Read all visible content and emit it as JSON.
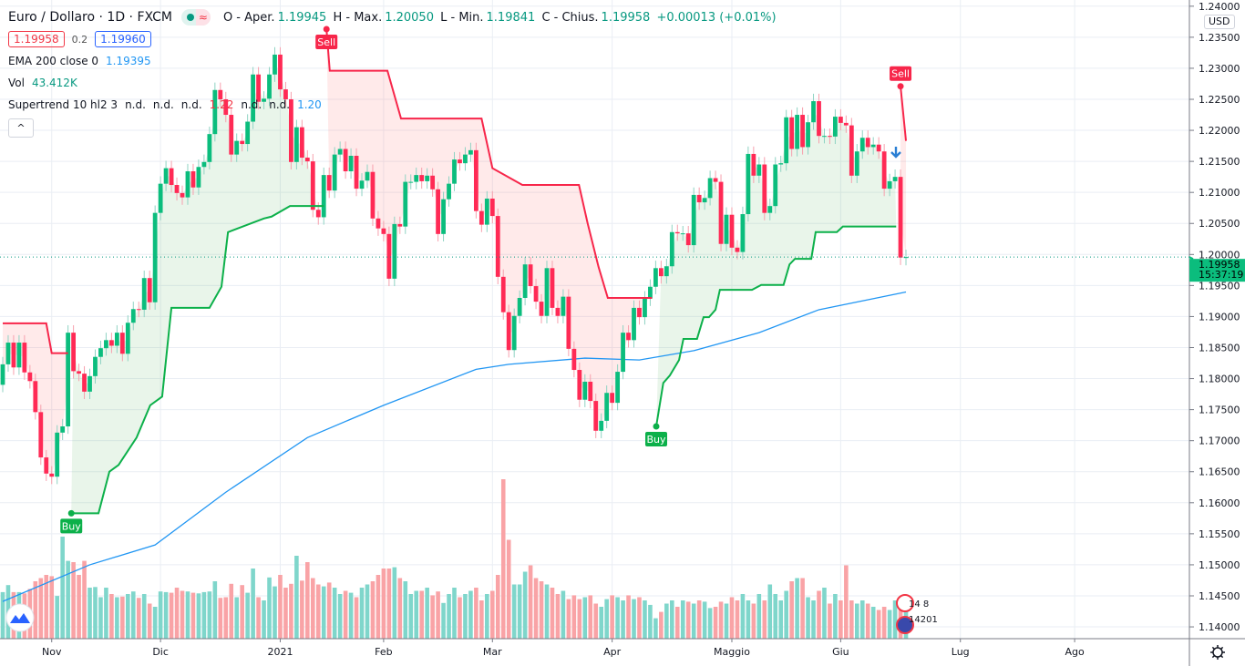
{
  "header": {
    "symbol": "Euro / Dollaro · 1D · FXCM",
    "open_label": "O - Aper.",
    "open": "1.19945",
    "high_label": "H - Max.",
    "high": "1.20050",
    "low_label": "L - Min.",
    "low": "1.19841",
    "close_label": "C - Chius.",
    "close": "1.19958",
    "change": "+0.00013 (+0.01%)",
    "market_status_icons": [
      "market-open-dot-icon",
      "approx-wave-icon"
    ]
  },
  "quote": {
    "bid": "1.19958",
    "spread": "0.2",
    "ask": "1.19960"
  },
  "indicators": {
    "ema": {
      "label": "EMA 200 close 0",
      "value": "1.19395"
    },
    "vol": {
      "label": "Vol",
      "value": "43.412K"
    },
    "supertrend": {
      "label": "Supertrend 10 hl2 3",
      "values": [
        "n.d.",
        "n.d.",
        "n.d.",
        "1.22",
        "n.d.",
        "n.d.",
        "1.20"
      ]
    },
    "collapse_label": "^"
  },
  "axis": {
    "currency": "USD",
    "last_price": "1.19958",
    "countdown": "15:37:19"
  },
  "events": {
    "flag1_text": "14 8",
    "flag2_text": "14201"
  },
  "colors": {
    "up": "#0bbd7d",
    "down": "#ff2a55",
    "ema": "#2196f3",
    "st_up": "#0cb04a",
    "st_down": "#f7264a",
    "vol_up": "#7fd6cb",
    "vol_down": "#f9a3a6"
  },
  "chart_data": {
    "type": "candlestick",
    "price_ticks": [
      "1.24000",
      "1.23500",
      "1.23000",
      "1.22500",
      "1.22000",
      "1.21500",
      "1.21000",
      "1.20500",
      "1.20000",
      "1.19500",
      "1.19000",
      "1.18500",
      "1.18000",
      "1.17500",
      "1.17000",
      "1.16500",
      "1.16000",
      "1.15500",
      "1.15000",
      "1.14500",
      "1.14000"
    ],
    "x_ticks": [
      {
        "label": "Nov",
        "bar": 9
      },
      {
        "label": "Dic",
        "bar": 29
      },
      {
        "label": "2021",
        "bar": 51
      },
      {
        "label": "Feb",
        "bar": 70
      },
      {
        "label": "Mar",
        "bar": 90
      },
      {
        "label": "Apr",
        "bar": 112
      },
      {
        "label": "Maggio",
        "bar": 134
      },
      {
        "label": "Giu",
        "bar": 154
      },
      {
        "label": "Lug",
        "bar": 176
      },
      {
        "label": "Ago",
        "bar": 197
      }
    ],
    "ylim": [
      1.1381,
      1.241
    ],
    "first_open": 1.179,
    "close": [
      1.1823,
      1.1858,
      1.1818,
      1.1858,
      1.181,
      1.1796,
      1.1746,
      1.1673,
      1.1647,
      1.1642,
      1.1713,
      1.1723,
      1.1874,
      1.1812,
      1.1808,
      1.1779,
      1.1804,
      1.1835,
      1.1849,
      1.1862,
      1.1853,
      1.1874,
      1.184,
      1.189,
      1.1912,
      1.1911,
      1.1962,
      1.1923,
      1.2067,
      1.2114,
      1.2139,
      1.2112,
      1.2099,
      1.2092,
      1.2134,
      1.2108,
      1.2141,
      1.2149,
      1.2194,
      1.2265,
      1.225,
      1.2225,
      1.2161,
      1.2183,
      1.2178,
      1.2214,
      1.229,
      1.2246,
      1.2251,
      1.229,
      1.2322,
      1.2266,
      1.225,
      1.2149,
      1.2205,
      1.2156,
      1.215,
      1.2072,
      1.206,
      1.2128,
      1.2103,
      1.2161,
      1.217,
      1.2134,
      1.2159,
      1.2106,
      1.2119,
      1.2133,
      1.2058,
      1.2042,
      1.2033,
      1.1961,
      1.2049,
      1.2045,
      1.2117,
      1.2117,
      1.2128,
      1.2118,
      1.2127,
      1.2105,
      1.2033,
      1.2089,
      1.2114,
      1.2153,
      1.2147,
      1.2161,
      1.2168,
      1.207,
      1.2048,
      1.209,
      1.2062,
      1.1964,
      1.1907,
      1.1846,
      1.1901,
      1.193,
      1.1984,
      1.1949,
      1.1924,
      1.1901,
      1.1978,
      1.1914,
      1.1901,
      1.1932,
      1.1848,
      1.1814,
      1.1766,
      1.1795,
      1.1764,
      1.1716,
      1.1732,
      1.1777,
      1.1761,
      1.1811,
      1.1874,
      1.1862,
      1.1914,
      1.1899,
      1.1929,
      1.1948,
      1.1978,
      1.1965,
      1.1981,
      1.2036,
      1.2034,
      1.2034,
      1.2015,
      1.2096,
      1.2084,
      1.2091,
      1.2123,
      1.2117,
      1.2017,
      1.2064,
      1.2011,
      1.2004,
      1.2065,
      1.2162,
      1.2127,
      1.2145,
      1.2067,
      1.2078,
      1.2145,
      1.2147,
      1.2221,
      1.217,
      1.2225,
      1.2173,
      1.2213,
      1.2247,
      1.2191,
      1.2191,
      1.219,
      1.2222,
      1.2212,
      1.2208,
      1.2127,
      1.2166,
      1.2188,
      1.2173,
      1.2177,
      1.2166,
      1.2106,
      1.2118,
      1.2125,
      1.1995,
      1.19958
    ],
    "volume_k": [
      73,
      84,
      73,
      73,
      71,
      78,
      90,
      95,
      100,
      98,
      67,
      160,
      122,
      120,
      100,
      122,
      80,
      81,
      65,
      80,
      70,
      65,
      66,
      70,
      74,
      64,
      70,
      55,
      50,
      74,
      73,
      72,
      80,
      75,
      74,
      72,
      71,
      73,
      74,
      90,
      64,
      65,
      86,
      65,
      84,
      72,
      110,
      65,
      60,
      96,
      82,
      100,
      80,
      86,
      130,
      91,
      120,
      95,
      85,
      82,
      88,
      80,
      70,
      75,
      72,
      65,
      80,
      85,
      90,
      100,
      110,
      110,
      112,
      95,
      90,
      70,
      75,
      75,
      80,
      68,
      74,
      56,
      70,
      80,
      65,
      70,
      75,
      80,
      60,
      70,
      75,
      100,
      250,
      155,
      85,
      85,
      105,
      115,
      95,
      90,
      85,
      80,
      70,
      75,
      62,
      68,
      62,
      65,
      68,
      55,
      50,
      62,
      68,
      65,
      60,
      68,
      62,
      65,
      60,
      53,
      32,
      42,
      55,
      60,
      50,
      60,
      58,
      55,
      60,
      58,
      48,
      50,
      58,
      55,
      65,
      60,
      70,
      60,
      55,
      70,
      60,
      85,
      70,
      60,
      75,
      90,
      95,
      95,
      65,
      60,
      75,
      80,
      55,
      70,
      60,
      115,
      60,
      55,
      60,
      55,
      50,
      45,
      50,
      45,
      60,
      50,
      43.412
    ],
    "ema200": [
      [
        0,
        1.1441
      ],
      [
        16,
        1.15
      ],
      [
        28,
        1.1532
      ],
      [
        41,
        1.1617
      ],
      [
        56,
        1.1705
      ],
      [
        70,
        1.1757
      ],
      [
        87,
        1.1815
      ],
      [
        93,
        1.1823
      ],
      [
        107,
        1.1833
      ],
      [
        117,
        1.183
      ],
      [
        127,
        1.1845
      ],
      [
        139,
        1.1874
      ],
      [
        150,
        1.1911
      ],
      [
        166,
        1.19395
      ]
    ],
    "supertrend": [
      {
        "direction": "down",
        "points": [
          [
            0,
            1.1889
          ],
          [
            8,
            1.1889
          ],
          [
            9,
            1.1841
          ],
          [
            12,
            1.1841
          ]
        ]
      },
      {
        "direction": "up",
        "signal": "Buy",
        "points": [
          [
            12.6,
            1.1583
          ],
          [
            17.6,
            1.1583
          ],
          [
            19.6,
            1.165
          ],
          [
            21.3,
            1.1661
          ],
          [
            24.6,
            1.1705
          ],
          [
            27.1,
            1.1757
          ],
          [
            29.3,
            1.1771
          ],
          [
            31,
            1.1914
          ],
          [
            38,
            1.1914
          ],
          [
            40.2,
            1.1948
          ],
          [
            41.4,
            1.2036
          ],
          [
            48,
            1.2058
          ],
          [
            49.4,
            1.2061
          ],
          [
            52.8,
            1.2078
          ],
          [
            59,
            1.2078
          ]
        ]
      },
      {
        "direction": "down",
        "signal": "Sell",
        "points": [
          [
            59.5,
            1.2363
          ],
          [
            60.1,
            1.2296
          ],
          [
            70.7,
            1.2296
          ],
          [
            73.2,
            1.2219
          ],
          [
            88,
            1.2219
          ],
          [
            90,
            1.2139
          ],
          [
            95.5,
            1.2112
          ],
          [
            105.9,
            1.2112
          ],
          [
            107.5,
            1.205
          ],
          [
            109.5,
            1.198
          ],
          [
            111.2,
            1.193
          ],
          [
            119.3,
            1.193
          ]
        ]
      },
      {
        "direction": "up",
        "signal": "Buy",
        "points": [
          [
            120.1,
            1.1723
          ],
          [
            121.4,
            1.1793
          ],
          [
            122.6,
            1.1805
          ],
          [
            124.3,
            1.183
          ],
          [
            125.1,
            1.1864
          ],
          [
            127.6,
            1.1864
          ],
          [
            128.8,
            1.1899
          ],
          [
            129.8,
            1.1899
          ],
          [
            131,
            1.1911
          ],
          [
            131.8,
            1.1943
          ],
          [
            137.7,
            1.1943
          ],
          [
            139.4,
            1.1951
          ],
          [
            143.5,
            1.1951
          ],
          [
            144.6,
            1.1984
          ],
          [
            145.6,
            1.1993
          ],
          [
            148.6,
            1.1993
          ],
          [
            149.4,
            1.2036
          ],
          [
            153.3,
            1.2036
          ],
          [
            154.4,
            1.2045
          ],
          [
            164.2,
            1.2045
          ]
        ]
      },
      {
        "direction": "down",
        "signal": "Sell",
        "points": [
          [
            165,
            1.2271
          ],
          [
            166,
            1.2183
          ]
        ]
      }
    ]
  }
}
